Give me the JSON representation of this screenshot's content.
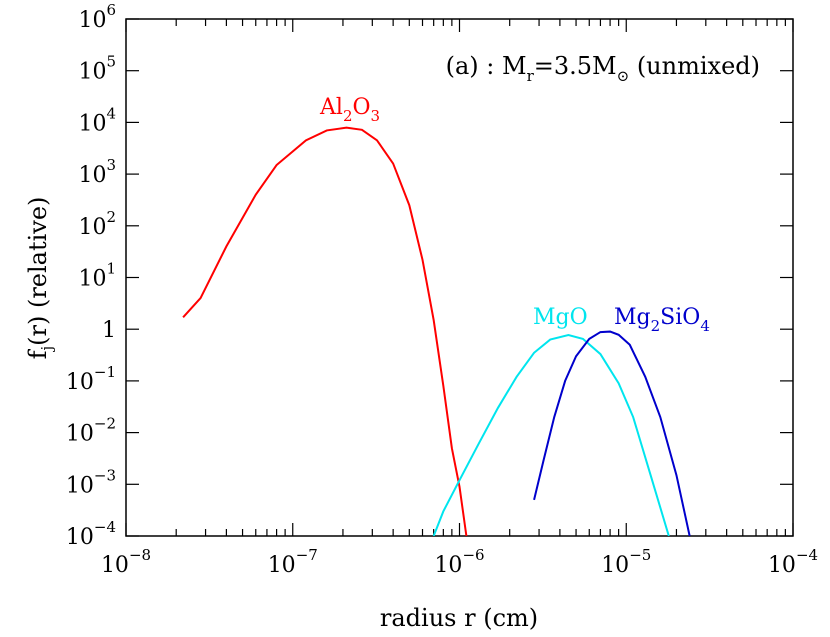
{
  "chart_data": {
    "type": "line",
    "xscale": "log",
    "yscale": "log",
    "xlim": [
      1e-08,
      0.0001
    ],
    "ylim": [
      0.0001,
      1000000.0
    ],
    "xlabel": "radius r (cm)",
    "ylabel": {
      "base": "f",
      "sub": "j",
      "rest": "(r) (relative)"
    },
    "annotation": {
      "prefix": "(a) : M",
      "sub1": "r",
      "mid": "=3.5M",
      "sub2": "⊙",
      "suffix": " (unmixed)"
    },
    "x_ticks": [
      {
        "base": "10",
        "exp": "−8"
      },
      {
        "base": "10",
        "exp": "−7"
      },
      {
        "base": "10",
        "exp": "−6"
      },
      {
        "base": "10",
        "exp": "−5"
      },
      {
        "base": "10",
        "exp": "−4"
      }
    ],
    "y_ticks": [
      {
        "base": "10",
        "exp": "−4"
      },
      {
        "base": "10",
        "exp": "−3"
      },
      {
        "base": "10",
        "exp": "−2"
      },
      {
        "base": "10",
        "exp": "−1"
      },
      {
        "base": "1",
        "exp": ""
      },
      {
        "base": "10",
        "exp": "1"
      },
      {
        "base": "10",
        "exp": "2"
      },
      {
        "base": "10",
        "exp": "3"
      },
      {
        "base": "10",
        "exp": "4"
      },
      {
        "base": "10",
        "exp": "5"
      },
      {
        "base": "10",
        "exp": "6"
      }
    ],
    "series": [
      {
        "name": "Al2O3",
        "label_parts": [
          [
            "Al",
            ""
          ],
          [
            "2",
            "sub"
          ],
          [
            "O",
            ""
          ],
          [
            "3",
            "sub"
          ]
        ],
        "color": "#ff0000",
        "points": [
          [
            2.2e-08,
            1.7
          ],
          [
            2.8e-08,
            4
          ],
          [
            4e-08,
            40
          ],
          [
            6e-08,
            400
          ],
          [
            8e-08,
            1500
          ],
          [
            1.2e-07,
            4500
          ],
          [
            1.6e-07,
            7000
          ],
          [
            2.1e-07,
            7900
          ],
          [
            2.6e-07,
            7200
          ],
          [
            3.2e-07,
            4500
          ],
          [
            4e-07,
            1600
          ],
          [
            5e-07,
            250
          ],
          [
            6e-07,
            22
          ],
          [
            7e-07,
            1.5
          ],
          [
            8e-07,
            0.08
          ],
          [
            9e-07,
            0.005
          ],
          [
            1e-06,
            0.0009
          ],
          [
            1.1e-06,
            0.0001
          ]
        ]
      },
      {
        "name": "MgO",
        "label_parts": [
          [
            "MgO",
            ""
          ]
        ],
        "color": "#00e5ee",
        "points": [
          [
            7e-07,
            0.0001
          ],
          [
            8e-07,
            0.0003
          ],
          [
            1e-06,
            0.0012
          ],
          [
            1.3e-06,
            0.006
          ],
          [
            1.7e-06,
            0.03
          ],
          [
            2.2e-06,
            0.12
          ],
          [
            2.8e-06,
            0.35
          ],
          [
            3.5e-06,
            0.63
          ],
          [
            4.5e-06,
            0.77
          ],
          [
            5.5e-06,
            0.65
          ],
          [
            7e-06,
            0.33
          ],
          [
            9e-06,
            0.09
          ],
          [
            1.1e-05,
            0.02
          ],
          [
            1.4e-05,
            0.0015
          ],
          [
            1.8e-05,
            0.0001
          ]
        ]
      },
      {
        "name": "Mg2SiO4",
        "label_parts": [
          [
            "Mg",
            ""
          ],
          [
            "2",
            "sub"
          ],
          [
            "SiO",
            ""
          ],
          [
            "4",
            "sub"
          ]
        ],
        "color": "#0000cc",
        "points": [
          [
            2.8e-06,
            0.0005
          ],
          [
            3.2e-06,
            0.003
          ],
          [
            3.7e-06,
            0.02
          ],
          [
            4.3e-06,
            0.1
          ],
          [
            5e-06,
            0.3
          ],
          [
            6e-06,
            0.65
          ],
          [
            7e-06,
            0.88
          ],
          [
            8e-06,
            0.9
          ],
          [
            9e-06,
            0.78
          ],
          [
            1.05e-05,
            0.5
          ],
          [
            1.3e-05,
            0.12
          ],
          [
            1.6e-05,
            0.02
          ],
          [
            2e-05,
            0.0015
          ],
          [
            2.4e-05,
            0.0001
          ]
        ]
      }
    ]
  }
}
